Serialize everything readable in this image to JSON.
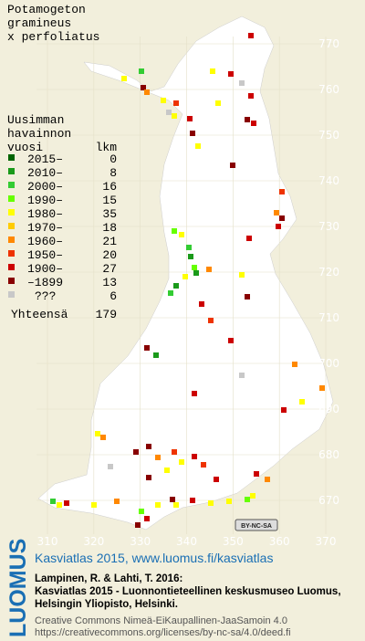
{
  "title": [
    "Potamogeton",
    "gramineus",
    "x perfoliatus"
  ],
  "legend": {
    "heading": [
      "Uusimman",
      "havainnon",
      "vuosi"
    ],
    "count_heading": "lkm",
    "rows": [
      {
        "label": "2015–",
        "count": 0,
        "color": "#006400"
      },
      {
        "label": "2010–",
        "count": 8,
        "color": "#1a9a1a"
      },
      {
        "label": "2000–",
        "count": 16,
        "color": "#33cc33"
      },
      {
        "label": "1990–",
        "count": 15,
        "color": "#66ff00"
      },
      {
        "label": "1980–",
        "count": 35,
        "color": "#ffff00"
      },
      {
        "label": "1970–",
        "count": 18,
        "color": "#ffcc00"
      },
      {
        "label": "1960–",
        "count": 21,
        "color": "#ff8800"
      },
      {
        "label": "1950–",
        "count": 20,
        "color": "#ee3300"
      },
      {
        "label": "1900–",
        "count": 27,
        "color": "#cc0000"
      },
      {
        "label": "–1899",
        "count": 13,
        "color": "#880000"
      },
      {
        "label": "???",
        "count": 6,
        "color": "#c8c8c8"
      }
    ],
    "total_label": "Yhteensä",
    "total": 179
  },
  "grid": {
    "y_labels": [
      770,
      760,
      750,
      740,
      730,
      720,
      710,
      700,
      690,
      680,
      670
    ],
    "x_labels": [
      310,
      320,
      330,
      340,
      350,
      360,
      370
    ]
  },
  "cc_badge": "BY-NC-SA",
  "footer": {
    "logo": "LUOMUS",
    "link": "Kasviatlas 2015, www.luomus.fi/kasviatlas",
    "citation": [
      "Lampinen, R. & Lahti, T. 2016:",
      "Kasviatlas 2015 - Luonnontieteellinen keskusmuseo Luomus,",
      "Helsingin Yliopisto, Helsinki."
    ],
    "license": [
      "Creative Commons Nimeä-EiKaupallinen-JaaSamoin 4.0",
      "https://creativecommons.org/licenses/by-nc-sa/4.0/deed.fi"
    ]
  }
}
